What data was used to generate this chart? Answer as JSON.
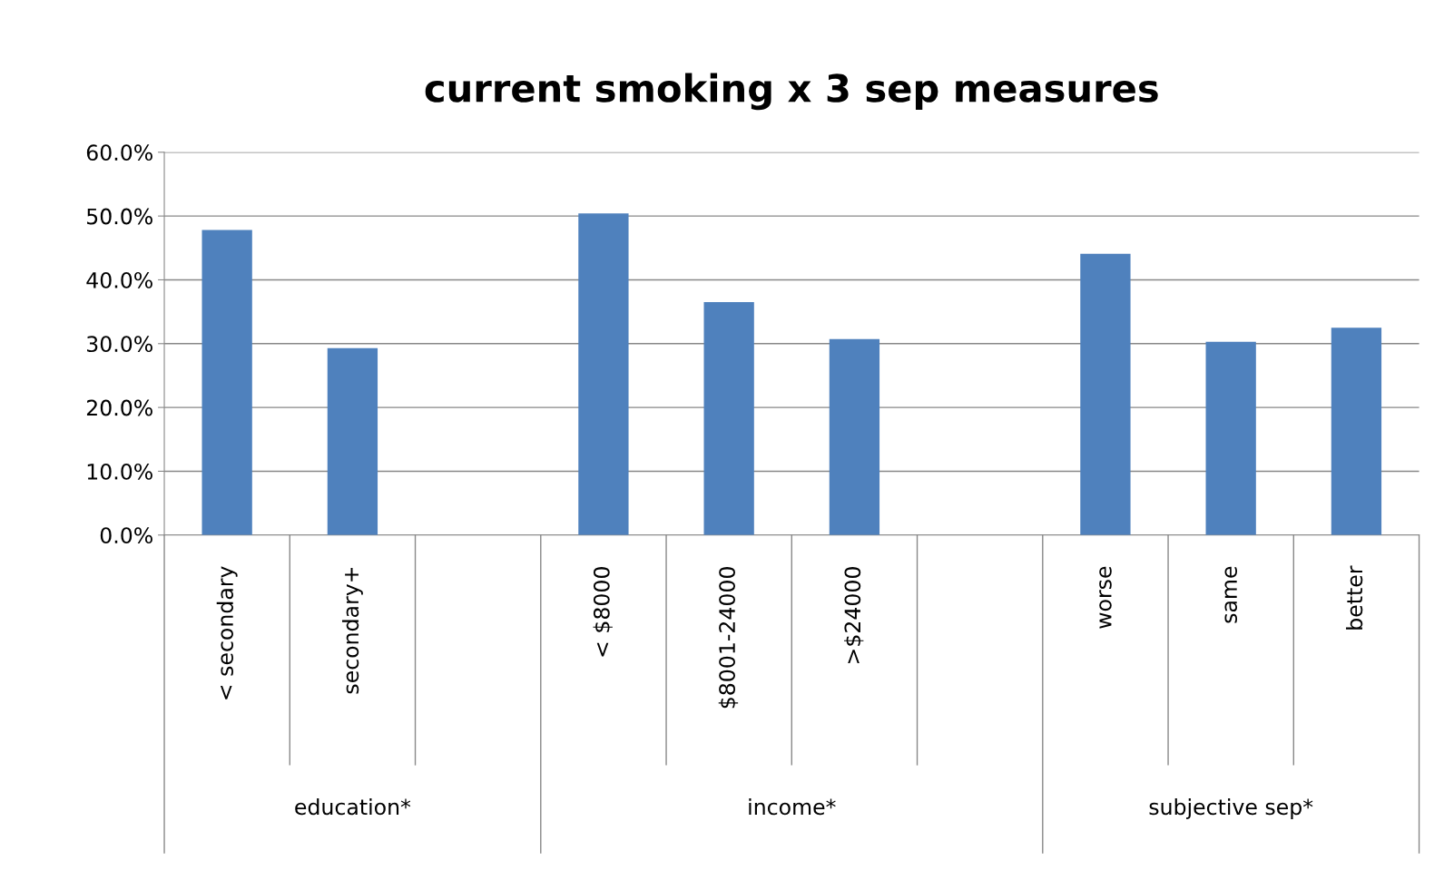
{
  "chart_data": {
    "type": "bar",
    "title": "current smoking x 3 sep measures",
    "categories": [
      "< secondary",
      "secondary+",
      null,
      "< $8000",
      "$8001-24000",
      ">$24000",
      null,
      "worse",
      "same",
      "better"
    ],
    "values": [
      47.8,
      29.3,
      null,
      50.4,
      36.5,
      30.7,
      null,
      44.1,
      30.3,
      32.5
    ],
    "color": "#4f81bd",
    "ylim": [
      0,
      60
    ],
    "yticks": [
      {
        "value": 0,
        "label": "0.0%"
      },
      {
        "value": 10,
        "label": "10.0%"
      },
      {
        "value": 20,
        "label": "20.0%"
      },
      {
        "value": 30,
        "label": "30.0%"
      },
      {
        "value": 40,
        "label": "40.0%"
      },
      {
        "value": 50,
        "label": "50.0%"
      },
      {
        "value": 60,
        "label": "60.0%"
      }
    ],
    "grid": "y",
    "annotations": [
      "education*",
      "income*",
      "subjective sep*"
    ]
  }
}
